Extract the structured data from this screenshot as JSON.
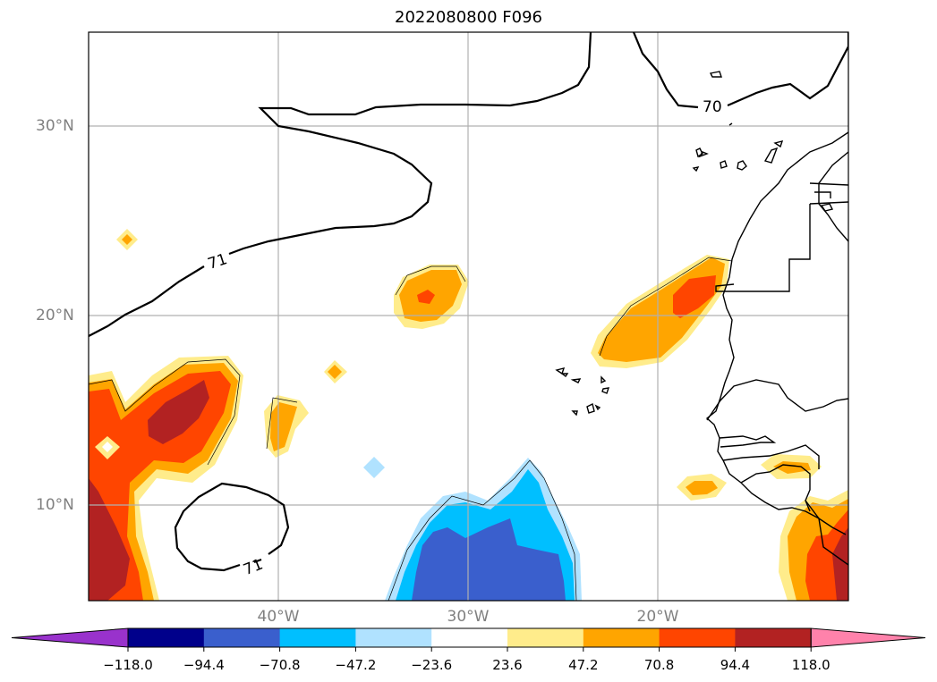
{
  "title": "2022080800 F096",
  "map": {
    "lat_labels": [
      "30°N",
      "20°N",
      "10°N"
    ],
    "lon_labels": [
      "40°W",
      "30°W",
      "20°W"
    ],
    "contour_labels": [
      "70",
      "71",
      "71"
    ]
  },
  "colorbar": {
    "ticks": [
      "−118.0",
      "−94.4",
      "−70.8",
      "−47.2",
      "−23.6",
      "23.6",
      "47.2",
      "70.8",
      "94.4",
      "118.0"
    ],
    "colors": [
      "#9932cc",
      "#00008b",
      "#3a5fcd",
      "#00bfff",
      "#b0e2ff",
      "#ffffff",
      "#ffec8b",
      "#ffa500",
      "#ff4500",
      "#b22222",
      "#ff82ab"
    ],
    "extend": "both"
  }
}
